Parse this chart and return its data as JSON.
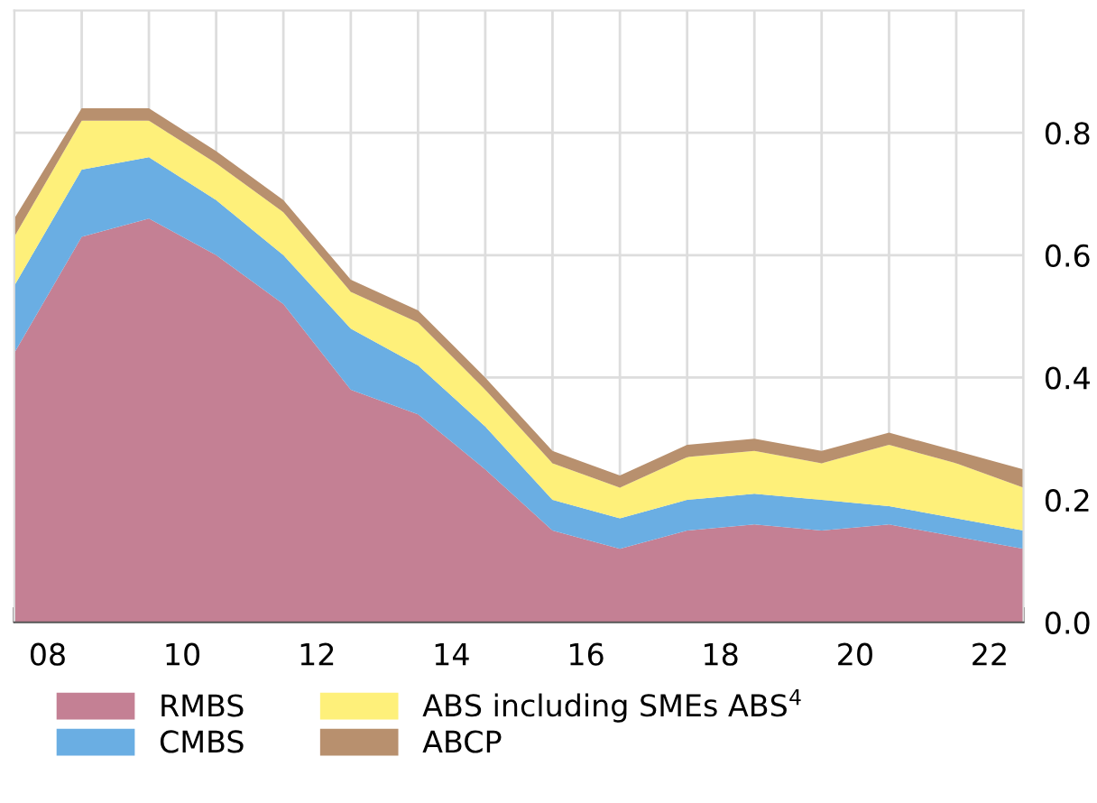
{
  "chart_data": {
    "type": "area",
    "stacked": true,
    "x": [
      "2008-01",
      "2009-01",
      "2010-01",
      "2011-01",
      "2012-01",
      "2013-01",
      "2014-01",
      "2015-01",
      "2016-01",
      "2017-01",
      "2018-01",
      "2019-01",
      "2020-01",
      "2021-01",
      "2022-01",
      "2023-01"
    ],
    "series": [
      {
        "name": "RMBS",
        "color": "#c48094",
        "values": [
          0.44,
          0.63,
          0.66,
          0.6,
          0.52,
          0.38,
          0.34,
          0.25,
          0.15,
          0.12,
          0.15,
          0.16,
          0.15,
          0.16,
          0.14,
          0.12
        ]
      },
      {
        "name": "CMBS",
        "color": "#6aaee3",
        "values": [
          0.11,
          0.11,
          0.1,
          0.09,
          0.08,
          0.1,
          0.08,
          0.07,
          0.05,
          0.05,
          0.05,
          0.05,
          0.05,
          0.03,
          0.03,
          0.03
        ]
      },
      {
        "name": "ABS including SMEs ABS$^{4}$",
        "color": "#fef07a",
        "values": [
          0.08,
          0.08,
          0.06,
          0.06,
          0.07,
          0.06,
          0.07,
          0.06,
          0.06,
          0.05,
          0.07,
          0.07,
          0.06,
          0.1,
          0.09,
          0.07
        ]
      },
      {
        "name": "ABCP",
        "color": "#b8906e",
        "values": [
          0.03,
          0.02,
          0.02,
          0.02,
          0.02,
          0.02,
          0.02,
          0.02,
          0.02,
          0.02,
          0.02,
          0.02,
          0.02,
          0.02,
          0.02,
          0.03
        ]
      }
    ],
    "xlim": [
      "2008-01",
      "2023-01"
    ],
    "xticks": [
      {
        "value": "2008-01",
        "label": null
      },
      {
        "value": "2009-01",
        "label": null
      },
      {
        "value": "2010-01",
        "label": null
      },
      {
        "value": "2011-01",
        "label": null
      },
      {
        "value": "2012-01",
        "label": null
      },
      {
        "value": "2013-01",
        "label": null
      },
      {
        "value": "2014-01",
        "label": null
      },
      {
        "value": "2015-01",
        "label": null
      },
      {
        "value": "2016-01",
        "label": null
      },
      {
        "value": "2017-01",
        "label": null
      },
      {
        "value": "2018-01",
        "label": null
      },
      {
        "value": "2019-01",
        "label": null
      },
      {
        "value": "2020-01",
        "label": null
      },
      {
        "value": "2021-01",
        "label": null
      },
      {
        "value": "2022-01",
        "label": null
      },
      {
        "value": "2023-01",
        "label": null
      },
      {
        "value": "2008-07",
        "label": "08"
      },
      {
        "value": "2010-07",
        "label": "10"
      },
      {
        "value": "2012-07",
        "label": "12"
      },
      {
        "value": "2014-07",
        "label": "14"
      },
      {
        "value": "2016-07",
        "label": "16"
      },
      {
        "value": "2018-07",
        "label": "18"
      },
      {
        "value": "2020-07",
        "label": "20"
      },
      {
        "value": "2022-07",
        "label": "22"
      }
    ],
    "ylim": [
      0,
      1.0
    ],
    "yticks": [
      {
        "value": 0,
        "label": "0.0"
      },
      {
        "value": 0.2,
        "label": "0.2"
      },
      {
        "value": 0.4,
        "label": "0.4"
      },
      {
        "value": 0.6,
        "label": "0.6"
      },
      {
        "value": 0.8,
        "label": "0.8"
      }
    ],
    "grid": true,
    "legend": "bottom"
  }
}
